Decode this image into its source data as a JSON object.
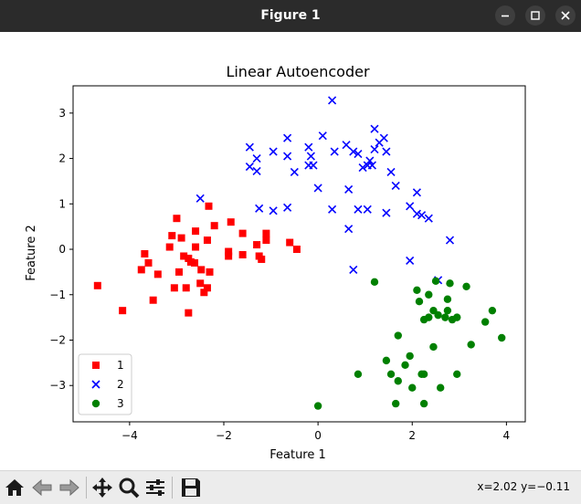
{
  "window": {
    "title": "Figure 1"
  },
  "toolbar": {
    "coords": "x=2.02 y=−0.11",
    "tools": [
      "home-icon",
      "back-arrow-icon",
      "forward-arrow-icon",
      "pan-icon",
      "zoom-icon",
      "configure-subplots-icon",
      "save-icon"
    ]
  },
  "chart_data": {
    "type": "scatter",
    "title": "Linear Autoencoder",
    "xlabel": "Feature 1",
    "ylabel": "Feature 2",
    "xlim": [
      -5.2,
      4.4
    ],
    "ylim": [
      -3.8,
      3.6
    ],
    "xticks": [
      -4,
      -2,
      0,
      2,
      4
    ],
    "yticks": [
      -3,
      -2,
      -1,
      0,
      1,
      2,
      3
    ],
    "grid": false,
    "legend_position": "lower-left",
    "series": [
      {
        "name": "1",
        "marker": "square",
        "color": "#ff0000",
        "points": [
          [
            -4.68,
            -0.8
          ],
          [
            -4.15,
            -1.35
          ],
          [
            -3.75,
            -0.45
          ],
          [
            -3.68,
            -0.1
          ],
          [
            -3.6,
            -0.3
          ],
          [
            -3.5,
            -1.12
          ],
          [
            -3.4,
            -0.55
          ],
          [
            -3.15,
            0.05
          ],
          [
            -3.1,
            0.3
          ],
          [
            -3.05,
            -0.85
          ],
          [
            -3.0,
            0.68
          ],
          [
            -2.95,
            -0.5
          ],
          [
            -2.9,
            0.25
          ],
          [
            -2.85,
            -0.15
          ],
          [
            -2.8,
            -0.85
          ],
          [
            -2.75,
            -1.4
          ],
          [
            -2.75,
            -0.2
          ],
          [
            -2.7,
            -0.28
          ],
          [
            -2.62,
            -0.3
          ],
          [
            -2.6,
            0.05
          ],
          [
            -2.6,
            0.4
          ],
          [
            -2.5,
            -0.75
          ],
          [
            -2.48,
            -0.45
          ],
          [
            -2.42,
            -0.95
          ],
          [
            -2.35,
            -0.85
          ],
          [
            -2.35,
            0.2
          ],
          [
            -2.32,
            0.95
          ],
          [
            -2.3,
            -0.5
          ],
          [
            -2.2,
            0.52
          ],
          [
            -1.9,
            -0.05
          ],
          [
            -1.9,
            -0.15
          ],
          [
            -1.85,
            0.6
          ],
          [
            -1.6,
            -0.12
          ],
          [
            -1.6,
            0.35
          ],
          [
            -1.3,
            0.1
          ],
          [
            -1.25,
            -0.15
          ],
          [
            -1.2,
            -0.22
          ],
          [
            -1.1,
            0.2
          ],
          [
            -1.1,
            0.35
          ],
          [
            -0.6,
            0.15
          ],
          [
            -0.45,
            0.0
          ]
        ]
      },
      {
        "name": "2",
        "marker": "x",
        "color": "#0000ff",
        "points": [
          [
            -2.5,
            1.12
          ],
          [
            -1.45,
            2.25
          ],
          [
            -1.45,
            1.82
          ],
          [
            -1.3,
            2.0
          ],
          [
            -1.3,
            1.72
          ],
          [
            -1.25,
            0.9
          ],
          [
            -0.95,
            2.15
          ],
          [
            -0.95,
            0.85
          ],
          [
            -0.65,
            2.45
          ],
          [
            -0.65,
            2.05
          ],
          [
            -0.65,
            0.92
          ],
          [
            -0.5,
            1.7
          ],
          [
            -0.2,
            2.25
          ],
          [
            -0.2,
            1.85
          ],
          [
            -0.15,
            2.05
          ],
          [
            -0.1,
            1.85
          ],
          [
            0.0,
            1.35
          ],
          [
            0.1,
            2.5
          ],
          [
            0.3,
            3.28
          ],
          [
            0.3,
            0.88
          ],
          [
            0.35,
            2.15
          ],
          [
            0.6,
            2.3
          ],
          [
            0.65,
            1.32
          ],
          [
            0.65,
            0.45
          ],
          [
            0.75,
            -0.45
          ],
          [
            0.75,
            2.15
          ],
          [
            0.85,
            2.1
          ],
          [
            0.85,
            0.88
          ],
          [
            0.95,
            1.8
          ],
          [
            1.05,
            1.85
          ],
          [
            1.05,
            0.88
          ],
          [
            1.1,
            1.95
          ],
          [
            1.15,
            1.85
          ],
          [
            1.2,
            2.65
          ],
          [
            1.2,
            2.2
          ],
          [
            1.3,
            2.35
          ],
          [
            1.4,
            2.45
          ],
          [
            1.45,
            2.15
          ],
          [
            1.45,
            0.8
          ],
          [
            1.55,
            1.7
          ],
          [
            1.65,
            1.4
          ],
          [
            1.95,
            0.95
          ],
          [
            1.95,
            -0.25
          ],
          [
            2.1,
            1.25
          ],
          [
            2.1,
            0.78
          ],
          [
            2.2,
            0.75
          ],
          [
            2.35,
            0.68
          ],
          [
            2.55,
            -0.68
          ],
          [
            2.8,
            0.2
          ]
        ]
      },
      {
        "name": "3",
        "marker": "circle",
        "color": "#008000",
        "points": [
          [
            0.0,
            -3.45
          ],
          [
            0.85,
            -2.75
          ],
          [
            1.2,
            -0.72
          ],
          [
            1.45,
            -2.45
          ],
          [
            1.55,
            -2.75
          ],
          [
            1.65,
            -3.4
          ],
          [
            1.7,
            -2.9
          ],
          [
            1.7,
            -1.9
          ],
          [
            1.85,
            -2.55
          ],
          [
            1.95,
            -2.35
          ],
          [
            2.0,
            -3.05
          ],
          [
            2.1,
            -0.9
          ],
          [
            2.15,
            -1.15
          ],
          [
            2.2,
            -2.75
          ],
          [
            2.25,
            -1.55
          ],
          [
            2.25,
            -2.75
          ],
          [
            2.25,
            -3.4
          ],
          [
            2.35,
            -1.5
          ],
          [
            2.35,
            -1.0
          ],
          [
            2.45,
            -1.35
          ],
          [
            2.45,
            -2.15
          ],
          [
            2.5,
            -0.7
          ],
          [
            2.55,
            -1.45
          ],
          [
            2.6,
            -3.05
          ],
          [
            2.7,
            -1.5
          ],
          [
            2.75,
            -1.35
          ],
          [
            2.75,
            -1.1
          ],
          [
            2.8,
            -0.75
          ],
          [
            2.85,
            -1.55
          ],
          [
            2.95,
            -1.5
          ],
          [
            2.95,
            -2.75
          ],
          [
            3.15,
            -0.82
          ],
          [
            3.25,
            -2.1
          ],
          [
            3.55,
            -1.6
          ],
          [
            3.7,
            -1.35
          ],
          [
            3.9,
            -1.95
          ]
        ]
      }
    ]
  }
}
